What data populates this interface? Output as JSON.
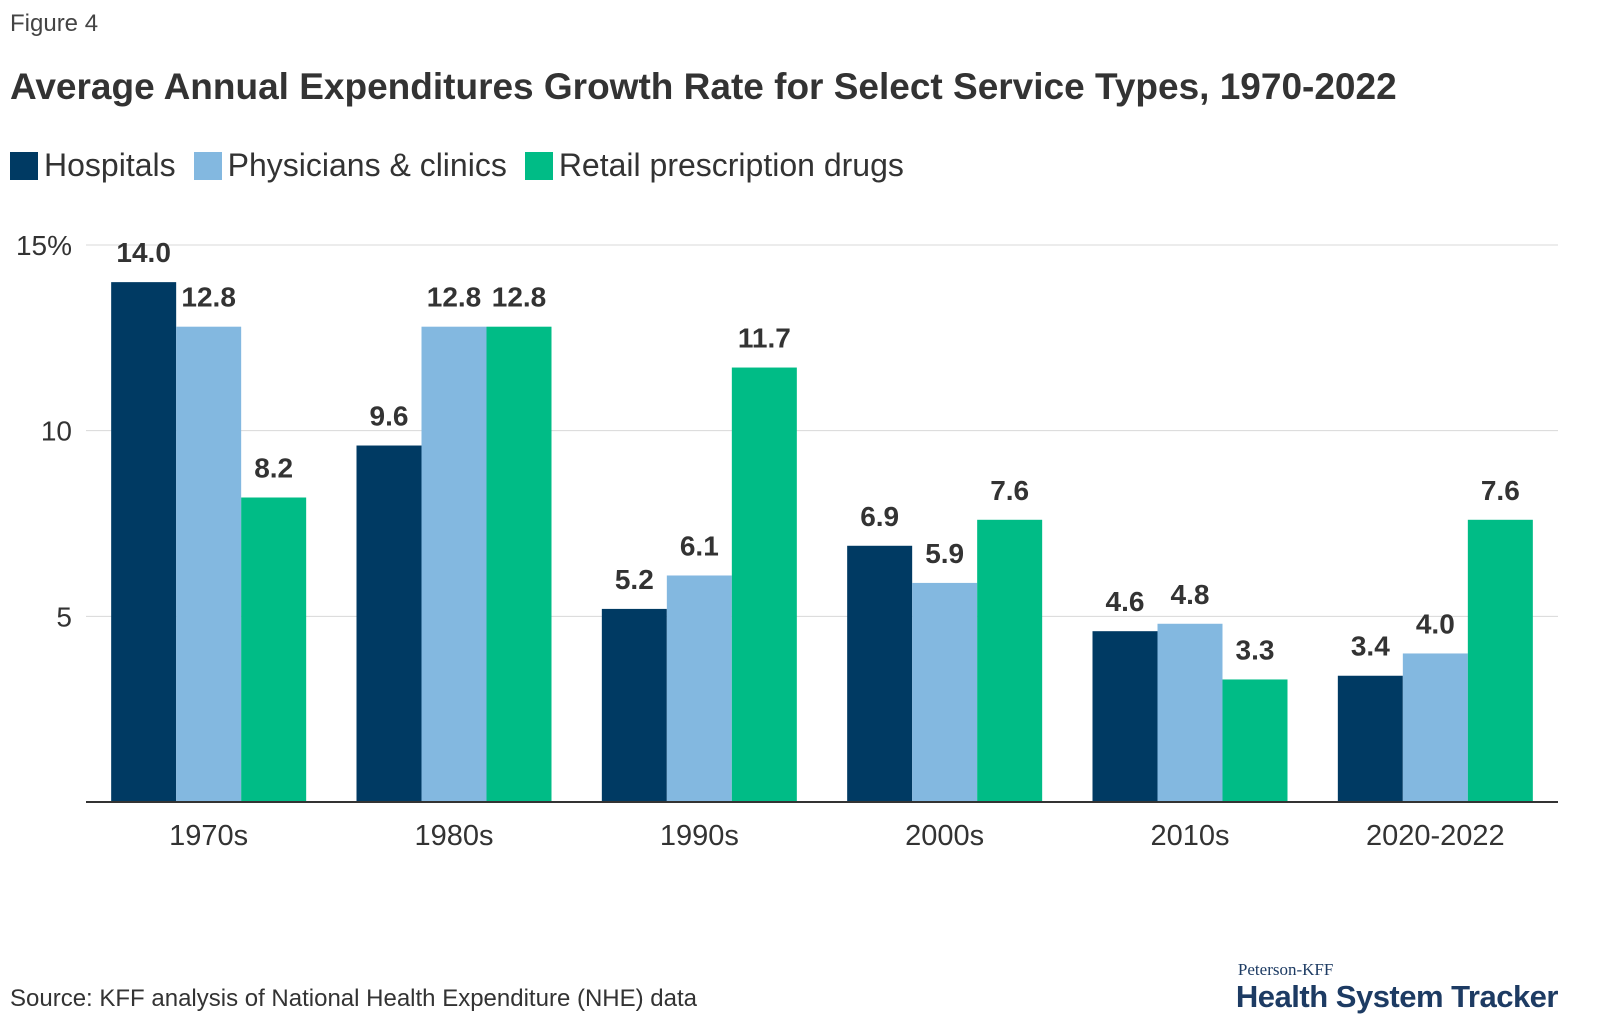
{
  "figure_label": "Figure 4",
  "source": "Source: KFF analysis of National Health Expenditure (NHE) data",
  "logo": {
    "top": "Peterson-KFF",
    "main": "Health System Tracker"
  },
  "chart_data": {
    "type": "bar",
    "title": "Average Annual Expenditures Growth Rate for Select Service Types, 1970-2022",
    "xlabel": "",
    "ylabel": "",
    "categories": [
      "1970s",
      "1980s",
      "1990s",
      "2000s",
      "2010s",
      "2020-2022"
    ],
    "series": [
      {
        "name": "Hospitals",
        "color": "#003a63",
        "values": [
          14.0,
          9.6,
          5.2,
          6.9,
          4.6,
          3.4
        ]
      },
      {
        "name": "Physicians & clinics",
        "color": "#83b8e0",
        "values": [
          12.8,
          12.8,
          6.1,
          5.9,
          4.8,
          4.0
        ]
      },
      {
        "name": "Retail prescription drugs",
        "color": "#00bc86",
        "values": [
          8.2,
          12.8,
          11.7,
          7.6,
          3.3,
          7.6
        ]
      }
    ],
    "ylim": [
      0,
      15
    ],
    "yticks": [
      {
        "value": 5,
        "label": "5"
      },
      {
        "value": 10,
        "label": "10"
      },
      {
        "value": 15,
        "label": "15%"
      }
    ],
    "grid": true,
    "legend_position": "top-left",
    "data_labels": true
  }
}
